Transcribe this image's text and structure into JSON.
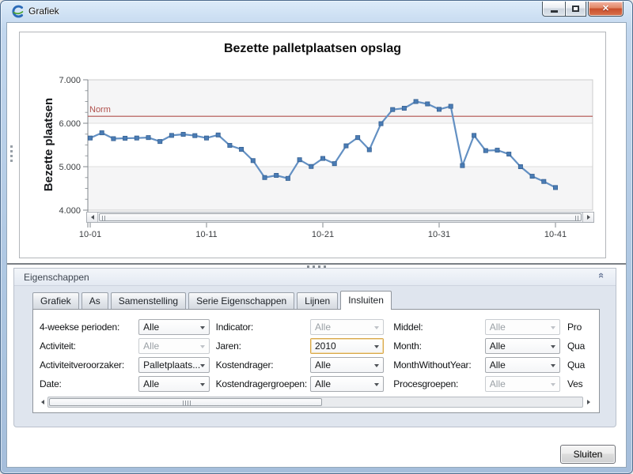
{
  "window": {
    "title": "Grafiek"
  },
  "chart_data": {
    "type": "line",
    "title": "Bezette palletplaatsen opslag",
    "ylabel": "Bezette plaatsen",
    "xlabel": "",
    "ylim": [
      4000,
      7000
    ],
    "grid": "horizontal-only",
    "legend": "none",
    "y_ticks": [
      {
        "value": 7000,
        "label": "7.000"
      },
      {
        "value": 6000,
        "label": "6.000"
      },
      {
        "value": 5000,
        "label": "5.000"
      },
      {
        "value": 4000,
        "label": "4.000"
      }
    ],
    "y_minor_step": 250,
    "x_ticks": [
      {
        "week": 1,
        "label": "10-01"
      },
      {
        "week": 11,
        "label": "10-11"
      },
      {
        "week": 21,
        "label": "10-21"
      },
      {
        "week": 31,
        "label": "10-31"
      },
      {
        "week": 41,
        "label": "10-41"
      }
    ],
    "series": [
      {
        "name": "Bezette plaatsen",
        "values": [
          5660,
          5780,
          5645,
          5655,
          5660,
          5670,
          5580,
          5720,
          5745,
          5715,
          5660,
          5730,
          5490,
          5400,
          5140,
          4750,
          4800,
          4730,
          5160,
          5005,
          5190,
          5070,
          5480,
          5670,
          5390,
          5990,
          6315,
          6345,
          6500,
          6445,
          6320,
          6390,
          5025,
          5720,
          5370,
          5380,
          5290,
          5000,
          4780,
          4660,
          4520
        ]
      }
    ],
    "norm": {
      "label": "Norm",
      "value": 6160,
      "color": "#b0504c"
    },
    "colors": {
      "line": "#6390c3",
      "marker": "#4a7cb5",
      "marker_border": "#376293",
      "grid": "#dedede",
      "band": "#f5f5f6",
      "axis": "#82878c",
      "tick_text": "#3a3d40"
    }
  },
  "properties_panel": {
    "header": "Eigenschappen",
    "collapse_icon": "chevron-double-up",
    "tabs": [
      {
        "label": "Grafiek"
      },
      {
        "label": "As"
      },
      {
        "label": "Samenstelling"
      },
      {
        "label": "Serie Eigenschappen"
      },
      {
        "label": "Lijnen"
      },
      {
        "label": "Insluiten",
        "active": true
      }
    ],
    "rows": [
      [
        {
          "label": "4-weekse perioden:",
          "value": "Alle",
          "state": "enabled"
        },
        {
          "label": "Indicator:",
          "value": "Alle",
          "state": "disabled"
        },
        {
          "label": "Middel:",
          "value": "Alle",
          "state": "disabled"
        }
      ],
      [
        {
          "label": "Activiteit:",
          "value": "Alle",
          "state": "disabled"
        },
        {
          "label": "Jaren:",
          "value": "2010",
          "state": "focused"
        },
        {
          "label": "Month:",
          "value": "Alle",
          "state": "enabled"
        }
      ],
      [
        {
          "label": "Activiteitveroorzaker:",
          "value": "Palletplaats...",
          "state": "enabled"
        },
        {
          "label": "Kostendrager:",
          "value": "Alle",
          "state": "enabled"
        },
        {
          "label": "MonthWithoutYear:",
          "value": "Alle",
          "state": "enabled"
        }
      ],
      [
        {
          "label": "Date:",
          "value": "Alle",
          "state": "enabled"
        },
        {
          "label": "Kostendragergroepen:",
          "value": "Alle",
          "state": "enabled"
        },
        {
          "label": "Procesgroepen:",
          "value": "Alle",
          "state": "disabled"
        }
      ]
    ],
    "clipped_column_labels": [
      "Pro",
      "Qua",
      "Qua",
      "Ves"
    ]
  },
  "footer": {
    "close_button": "Sluiten"
  }
}
